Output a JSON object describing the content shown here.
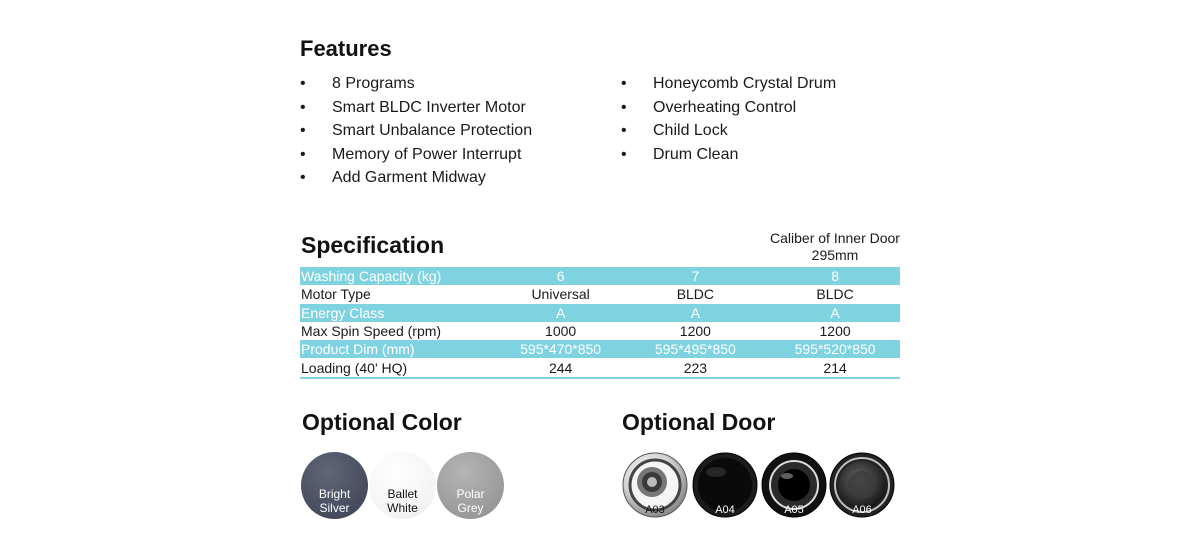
{
  "features": {
    "title": "Features",
    "column1": [
      "8 Programs",
      "Smart BLDC Inverter Motor",
      "Smart Unbalance Protection",
      "Memory of Power Interrupt",
      "Add Garment Midway"
    ],
    "column2": [
      "Honeycomb Crystal Drum",
      "Overheating Control",
      "Child Lock",
      "Drum Clean"
    ]
  },
  "specification": {
    "title": "Specification",
    "caliber_label": "Caliber of Inner Door",
    "caliber_value": "295mm",
    "rows": [
      {
        "label": "Washing Capacity (kg)",
        "values": [
          "6",
          "7",
          "8"
        ]
      },
      {
        "label": "Motor Type",
        "values": [
          "Universal",
          "BLDC",
          "BLDC"
        ]
      },
      {
        "label": "Energy Class",
        "values": [
          "A",
          "A",
          "A"
        ]
      },
      {
        "label": "Max Spin Speed (rpm)",
        "values": [
          "1000",
          "1200",
          "1200"
        ]
      },
      {
        "label": "Product Dim (mm)",
        "values": [
          "595*470*850",
          "595*495*850",
          "595*520*850"
        ]
      },
      {
        "label": "Loading (40' HQ)",
        "values": [
          "244",
          "223",
          "214"
        ]
      }
    ]
  },
  "optional_color": {
    "title": "Optional Color",
    "swatches": [
      {
        "line1": "Bright",
        "line2": "Silver",
        "color": "#4a5062"
      },
      {
        "line1": "Ballet",
        "line2": "White",
        "color": "#f4f4f4"
      },
      {
        "line1": "Polar",
        "line2": "Grey",
        "color": "#9e9e9e"
      }
    ]
  },
  "optional_door": {
    "title": "Optional Door",
    "doors": [
      {
        "code": "A03",
        "icon": "door-chrome-icon"
      },
      {
        "code": "A04",
        "icon": "door-black-icon"
      },
      {
        "code": "A05",
        "icon": "door-black-glass-icon"
      },
      {
        "code": "A06",
        "icon": "door-dark-chrome-icon"
      }
    ]
  }
}
